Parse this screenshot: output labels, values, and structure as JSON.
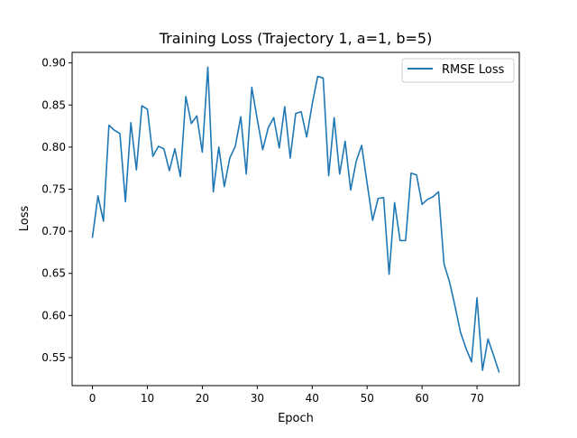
{
  "chart_data": {
    "type": "line",
    "title": "Training Loss (Trajectory 1, a=1, b=5)",
    "xlabel": "Epoch",
    "ylabel": "Loss",
    "xlim": [
      -3.7,
      77.7
    ],
    "ylim": [
      0.5167,
      0.9125
    ],
    "xticks": [
      0,
      10,
      20,
      30,
      40,
      50,
      60,
      70
    ],
    "yticks": [
      0.55,
      0.6,
      0.65,
      0.7,
      0.75,
      0.8,
      0.85,
      0.9
    ],
    "xtick_labels": [
      "0",
      "10",
      "20",
      "30",
      "40",
      "50",
      "60",
      "70"
    ],
    "ytick_labels": [
      "0.55",
      "0.60",
      "0.65",
      "0.70",
      "0.75",
      "0.80",
      "0.85",
      "0.90"
    ],
    "grid": false,
    "legend_position": "upper right",
    "series": [
      {
        "name": "RMSE Loss",
        "color": "#1f77b4",
        "x": [
          0,
          1,
          2,
          3,
          4,
          5,
          6,
          7,
          8,
          9,
          10,
          11,
          12,
          13,
          14,
          15,
          16,
          17,
          18,
          19,
          20,
          21,
          22,
          23,
          24,
          25,
          26,
          27,
          28,
          29,
          30,
          31,
          32,
          33,
          34,
          35,
          36,
          37,
          38,
          39,
          40,
          41,
          42,
          43,
          44,
          45,
          46,
          47,
          48,
          49,
          50,
          51,
          52,
          53,
          54,
          55,
          56,
          57,
          58,
          59,
          60,
          61,
          62,
          63,
          64,
          65,
          66,
          67,
          68,
          69,
          70,
          71,
          72,
          73,
          74
        ],
        "values": [
          0.693,
          0.742,
          0.712,
          0.826,
          0.82,
          0.816,
          0.735,
          0.829,
          0.773,
          0.849,
          0.845,
          0.789,
          0.801,
          0.798,
          0.772,
          0.798,
          0.765,
          0.86,
          0.828,
          0.837,
          0.794,
          0.895,
          0.747,
          0.8,
          0.753,
          0.787,
          0.801,
          0.836,
          0.768,
          0.871,
          0.833,
          0.797,
          0.823,
          0.835,
          0.799,
          0.848,
          0.787,
          0.84,
          0.842,
          0.812,
          0.851,
          0.884,
          0.882,
          0.766,
          0.835,
          0.768,
          0.807,
          0.749,
          0.783,
          0.802,
          0.757,
          0.713,
          0.739,
          0.74,
          0.649,
          0.734,
          0.689,
          0.689,
          0.769,
          0.767,
          0.732,
          0.738,
          0.741,
          0.747,
          0.661,
          0.64,
          0.611,
          0.58,
          0.561,
          0.545,
          0.621,
          0.535,
          0.572,
          0.553,
          0.533
        ]
      }
    ]
  }
}
